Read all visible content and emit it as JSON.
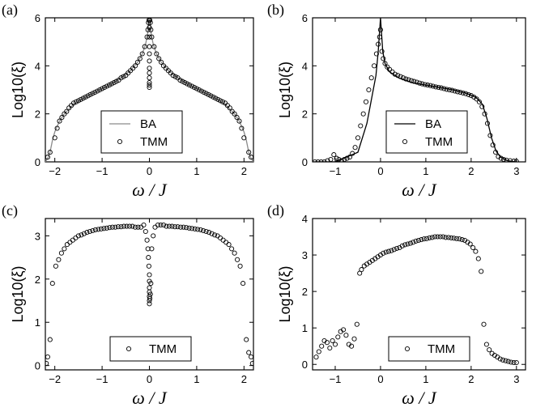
{
  "chart_data": [
    {
      "panel": "(a)",
      "type": "scatter",
      "xlabel": "ω / J",
      "ylabel": "Log10(ξ)",
      "xlim": [
        -2.2,
        2.2
      ],
      "ylim": [
        0,
        6
      ],
      "xticks": [
        -2,
        -1,
        0,
        1,
        2
      ],
      "yticks": [
        0,
        2,
        4,
        6
      ],
      "xtick_labels": [
        "−2",
        "−1",
        "0",
        "1",
        "2"
      ],
      "ytick_labels": [
        "0",
        "2",
        "4",
        "6"
      ],
      "legend": [
        "BA",
        "TMM"
      ],
      "legend_position": "bottom-center",
      "series": [
        {
          "name": "BA",
          "kind": "line",
          "color": "#8a8a8a",
          "x": [
            -2.2,
            -2.15,
            -2.1,
            -2.05,
            -2.0,
            -1.9,
            -1.8,
            -1.6,
            -1.4,
            -1.2,
            -1.0,
            -0.8,
            -0.6,
            -0.4,
            -0.25,
            -0.15,
            -0.08,
            -0.04,
            -0.02,
            0.0,
            0.02,
            0.04,
            0.08,
            0.15,
            0.25,
            0.4,
            0.6,
            0.8,
            1.0,
            1.2,
            1.4,
            1.6,
            1.8,
            1.9,
            2.0,
            2.05,
            2.1,
            2.15,
            2.2
          ],
          "y": [
            0.0,
            0.15,
            0.4,
            0.9,
            1.25,
            1.7,
            2.0,
            2.4,
            2.65,
            2.85,
            3.05,
            3.25,
            3.5,
            3.8,
            4.15,
            4.5,
            4.9,
            5.3,
            5.7,
            6.0,
            5.7,
            5.3,
            4.9,
            4.5,
            4.15,
            3.8,
            3.5,
            3.25,
            3.05,
            2.85,
            2.65,
            2.4,
            2.0,
            1.7,
            1.25,
            0.9,
            0.4,
            0.15,
            0.0
          ]
        },
        {
          "name": "TMM",
          "kind": "markers",
          "x": [
            -2.15,
            -2.1,
            -2.0,
            -1.95,
            -1.9,
            -1.85,
            -1.8,
            -1.75,
            -1.7,
            -1.65,
            -1.6,
            -1.55,
            -1.5,
            -1.45,
            -1.4,
            -1.35,
            -1.3,
            -1.25,
            -1.2,
            -1.15,
            -1.1,
            -1.05,
            -1.0,
            -0.95,
            -0.9,
            -0.85,
            -0.8,
            -0.75,
            -0.7,
            -0.65,
            -0.6,
            -0.55,
            -0.5,
            -0.45,
            -0.4,
            -0.35,
            -0.3,
            -0.25,
            -0.2,
            -0.15,
            -0.1,
            -0.05,
            -0.03,
            -0.02,
            -0.01,
            0.0,
            0.0,
            0.0,
            0.0,
            0.0,
            0.0,
            0.0,
            0.0,
            0.0,
            0.0,
            0.0,
            0.01,
            0.02,
            0.03,
            0.05,
            0.1,
            0.15,
            0.2,
            0.25,
            0.3,
            0.35,
            0.4,
            0.45,
            0.5,
            0.55,
            0.6,
            0.65,
            0.7,
            0.75,
            0.8,
            0.85,
            0.9,
            0.95,
            1.0,
            1.05,
            1.1,
            1.15,
            1.2,
            1.25,
            1.3,
            1.35,
            1.4,
            1.45,
            1.5,
            1.55,
            1.6,
            1.65,
            1.7,
            1.75,
            1.8,
            1.85,
            1.9,
            1.95,
            2.0,
            2.1,
            2.15
          ],
          "y": [
            0.2,
            0.4,
            1.0,
            1.4,
            1.7,
            1.85,
            2.0,
            2.1,
            2.25,
            2.35,
            2.45,
            2.5,
            2.55,
            2.6,
            2.65,
            2.7,
            2.75,
            2.8,
            2.85,
            2.9,
            2.95,
            3.0,
            3.05,
            3.1,
            3.15,
            3.2,
            3.25,
            3.3,
            3.35,
            3.4,
            3.5,
            3.55,
            3.6,
            3.7,
            3.8,
            3.9,
            4.0,
            4.15,
            4.3,
            4.5,
            4.8,
            5.2,
            5.5,
            5.8,
            5.9,
            5.6,
            5.2,
            4.8,
            4.5,
            4.2,
            3.9,
            3.7,
            3.5,
            3.3,
            3.2,
            3.1,
            5.9,
            5.8,
            5.5,
            5.2,
            4.8,
            4.5,
            4.3,
            4.15,
            4.0,
            3.9,
            3.8,
            3.7,
            3.6,
            3.55,
            3.5,
            3.4,
            3.35,
            3.3,
            3.25,
            3.2,
            3.15,
            3.1,
            3.05,
            3.0,
            2.95,
            2.9,
            2.85,
            2.8,
            2.75,
            2.7,
            2.65,
            2.6,
            2.55,
            2.5,
            2.45,
            2.35,
            2.25,
            2.1,
            2.0,
            1.85,
            1.7,
            1.4,
            1.0,
            0.4,
            0.2
          ]
        }
      ]
    },
    {
      "panel": "(b)",
      "type": "scatter",
      "xlabel": "ω / J",
      "ylabel": "Log10(ξ)",
      "xlim": [
        -1.5,
        3.2
      ],
      "ylim": [
        0,
        6
      ],
      "xticks": [
        -1,
        0,
        1,
        2,
        3
      ],
      "yticks": [
        0,
        2,
        4,
        6
      ],
      "xtick_labels": [
        "−1",
        "0",
        "1",
        "2",
        "3"
      ],
      "ytick_labels": [
        "0",
        "2",
        "4",
        "6"
      ],
      "legend": [
        "BA",
        "TMM"
      ],
      "legend_position": "bottom-center",
      "series": [
        {
          "name": "BA",
          "kind": "line",
          "color": "#000000",
          "x": [
            -1.5,
            -1.0,
            -0.5,
            -0.3,
            -0.2,
            -0.1,
            -0.05,
            0.0,
            0.05,
            0.1,
            0.2,
            0.4,
            0.7,
            1.0,
            1.3,
            1.6,
            1.9,
            2.1,
            2.25,
            2.35,
            2.45,
            2.55,
            2.65,
            2.8,
            3.0
          ],
          "y": [
            0.0,
            0.0,
            0.4,
            1.6,
            2.6,
            3.6,
            4.6,
            6.0,
            4.6,
            4.1,
            3.75,
            3.5,
            3.3,
            3.2,
            3.1,
            3.0,
            2.85,
            2.7,
            2.4,
            1.8,
            1.0,
            0.45,
            0.2,
            0.05,
            0.0
          ],
          "extra_points_x": [],
          "extra_points_y": []
        },
        {
          "name": "TMM",
          "kind": "markers",
          "x": [
            -1.45,
            -1.38,
            -1.31,
            -1.24,
            -1.17,
            -1.1,
            -1.03,
            -0.97,
            -0.92,
            -0.86,
            -0.8,
            -0.74,
            -0.68,
            -0.62,
            -0.56,
            -0.5,
            -0.44,
            -0.38,
            -0.32,
            -0.26,
            -0.2,
            -0.14,
            -0.09,
            -0.05,
            -0.02,
            0.0,
            0.03,
            0.06,
            0.1,
            0.15,
            0.2,
            0.26,
            0.32,
            0.38,
            0.44,
            0.5,
            0.56,
            0.62,
            0.68,
            0.74,
            0.8,
            0.86,
            0.92,
            0.98,
            1.04,
            1.1,
            1.16,
            1.22,
            1.28,
            1.34,
            1.4,
            1.46,
            1.52,
            1.58,
            1.64,
            1.7,
            1.76,
            1.82,
            1.88,
            1.94,
            2.0,
            2.06,
            2.12,
            2.18,
            2.24,
            2.3,
            2.36,
            2.42,
            2.48,
            2.54,
            2.6,
            2.66,
            2.72,
            2.78,
            2.86,
            2.94,
            3.0
          ],
          "y": [
            0.0,
            0.0,
            0.0,
            0.0,
            0.05,
            0.1,
            0.3,
            0.15,
            0.1,
            0.05,
            0.1,
            0.15,
            0.2,
            0.35,
            0.6,
            1.0,
            1.5,
            2.0,
            2.5,
            3.0,
            3.5,
            4.0,
            4.5,
            4.9,
            5.2,
            5.5,
            4.6,
            4.3,
            4.1,
            3.95,
            3.85,
            3.75,
            3.65,
            3.6,
            3.55,
            3.5,
            3.45,
            3.42,
            3.38,
            3.35,
            3.32,
            3.28,
            3.25,
            3.22,
            3.2,
            3.18,
            3.15,
            3.12,
            3.1,
            3.08,
            3.05,
            3.02,
            3.0,
            2.98,
            2.95,
            2.92,
            2.9,
            2.87,
            2.84,
            2.8,
            2.76,
            2.7,
            2.62,
            2.5,
            2.3,
            2.0,
            1.6,
            1.1,
            0.7,
            0.4,
            0.22,
            0.15,
            0.1,
            0.07,
            0.05,
            0.03,
            0.02
          ]
        }
      ]
    },
    {
      "panel": "(c)",
      "type": "scatter",
      "xlabel": "ω / J",
      "ylabel": "Log10(ξ)",
      "xlim": [
        -2.2,
        2.2
      ],
      "ylim": [
        -0.1,
        3.4
      ],
      "xticks": [
        -2,
        -1,
        0,
        1,
        2
      ],
      "yticks": [
        0,
        1,
        2,
        3
      ],
      "xtick_labels": [
        "−2",
        "−1",
        "0",
        "1",
        "2"
      ],
      "ytick_labels": [
        "0",
        "1",
        "2",
        "3"
      ],
      "legend": [
        "TMM"
      ],
      "legend_position": "bottom-center",
      "series": [
        {
          "name": "TMM",
          "kind": "markers",
          "x": [
            -2.18,
            -2.15,
            -2.1,
            -2.05,
            -1.98,
            -1.92,
            -1.86,
            -1.8,
            -1.74,
            -1.68,
            -1.62,
            -1.56,
            -1.5,
            -1.44,
            -1.38,
            -1.32,
            -1.26,
            -1.2,
            -1.14,
            -1.08,
            -1.02,
            -0.96,
            -0.9,
            -0.84,
            -0.78,
            -0.72,
            -0.66,
            -0.6,
            -0.54,
            -0.48,
            -0.42,
            -0.36,
            -0.3,
            -0.24,
            -0.18,
            -0.12,
            -0.08,
            -0.05,
            -0.03,
            -0.02,
            -0.01,
            0.0,
            0.0,
            0.0,
            0.0,
            0.0,
            0.0,
            0.0,
            0.01,
            0.02,
            0.03,
            0.05,
            0.08,
            0.12,
            0.18,
            0.24,
            0.3,
            0.36,
            0.42,
            0.48,
            0.54,
            0.6,
            0.66,
            0.72,
            0.78,
            0.84,
            0.9,
            0.96,
            1.02,
            1.08,
            1.14,
            1.2,
            1.26,
            1.32,
            1.38,
            1.44,
            1.5,
            1.56,
            1.62,
            1.68,
            1.74,
            1.8,
            1.86,
            1.92,
            1.98,
            2.05,
            2.1,
            2.15,
            2.18
          ],
          "y": [
            0.05,
            0.2,
            0.6,
            1.9,
            2.3,
            2.45,
            2.6,
            2.7,
            2.8,
            2.85,
            2.9,
            2.95,
            3.0,
            3.02,
            3.05,
            3.08,
            3.1,
            3.12,
            3.14,
            3.15,
            3.16,
            3.17,
            3.18,
            3.19,
            3.2,
            3.2,
            3.21,
            3.21,
            3.22,
            3.22,
            3.22,
            3.22,
            3.2,
            3.2,
            3.2,
            3.25,
            3.1,
            2.9,
            2.7,
            2.5,
            2.3,
            2.1,
            1.95,
            1.8,
            1.7,
            1.6,
            1.5,
            1.43,
            1.55,
            1.65,
            1.9,
            2.7,
            3.0,
            3.2,
            3.25,
            3.25,
            3.25,
            3.22,
            3.22,
            3.22,
            3.21,
            3.21,
            3.2,
            3.2,
            3.19,
            3.18,
            3.17,
            3.16,
            3.15,
            3.14,
            3.12,
            3.1,
            3.08,
            3.05,
            3.02,
            3.0,
            2.95,
            2.9,
            2.85,
            2.8,
            2.7,
            2.6,
            2.45,
            2.3,
            1.9,
            0.6,
            0.3,
            0.2,
            0.05
          ]
        }
      ]
    },
    {
      "panel": "(d)",
      "type": "scatter",
      "xlabel": "ω / J",
      "ylabel": "Log10(ξ)",
      "xlim": [
        -1.5,
        3.2
      ],
      "ylim": [
        -0.15,
        4
      ],
      "xticks": [
        -1,
        0,
        1,
        2,
        3
      ],
      "yticks": [
        0,
        1,
        2,
        3,
        4
      ],
      "xtick_labels": [
        "−1",
        "0",
        "1",
        "2",
        "3"
      ],
      "ytick_labels": [
        "0",
        "1",
        "2",
        "3",
        "4"
      ],
      "legend": [
        "TMM"
      ],
      "legend_position": "bottom-center",
      "series": [
        {
          "name": "TMM",
          "kind": "markers",
          "x": [
            -1.42,
            -1.36,
            -1.3,
            -1.24,
            -1.18,
            -1.12,
            -1.06,
            -1.0,
            -0.94,
            -0.88,
            -0.82,
            -0.76,
            -0.7,
            -0.64,
            -0.58,
            -0.52,
            -0.46,
            -0.42,
            -0.36,
            -0.3,
            -0.24,
            -0.18,
            -0.12,
            -0.06,
            0.0,
            0.06,
            0.12,
            0.18,
            0.24,
            0.3,
            0.36,
            0.42,
            0.48,
            0.54,
            0.6,
            0.66,
            0.72,
            0.78,
            0.84,
            0.9,
            0.96,
            1.02,
            1.08,
            1.14,
            1.2,
            1.26,
            1.32,
            1.38,
            1.44,
            1.5,
            1.56,
            1.62,
            1.68,
            1.74,
            1.8,
            1.86,
            1.92,
            1.98,
            2.04,
            2.1,
            2.16,
            2.22,
            2.28,
            2.34,
            2.4,
            2.46,
            2.52,
            2.58,
            2.64,
            2.7,
            2.76,
            2.82,
            2.88,
            2.94,
            3.0
          ],
          "y": [
            0.2,
            0.35,
            0.5,
            0.65,
            0.6,
            0.45,
            0.65,
            0.55,
            0.75,
            0.9,
            0.95,
            0.8,
            0.55,
            0.5,
            0.7,
            1.1,
            2.5,
            2.6,
            2.7,
            2.75,
            2.8,
            2.85,
            2.9,
            2.95,
            3.0,
            3.05,
            3.08,
            3.1,
            3.12,
            3.15,
            3.18,
            3.2,
            3.25,
            3.28,
            3.3,
            3.32,
            3.35,
            3.38,
            3.4,
            3.42,
            3.44,
            3.45,
            3.47,
            3.48,
            3.5,
            3.5,
            3.5,
            3.5,
            3.48,
            3.48,
            3.47,
            3.46,
            3.45,
            3.44,
            3.42,
            3.4,
            3.35,
            3.3,
            3.2,
            3.1,
            2.9,
            2.55,
            1.1,
            0.55,
            0.4,
            0.3,
            0.25,
            0.2,
            0.15,
            0.12,
            0.1,
            0.08,
            0.06,
            0.05,
            0.05
          ]
        }
      ]
    }
  ]
}
